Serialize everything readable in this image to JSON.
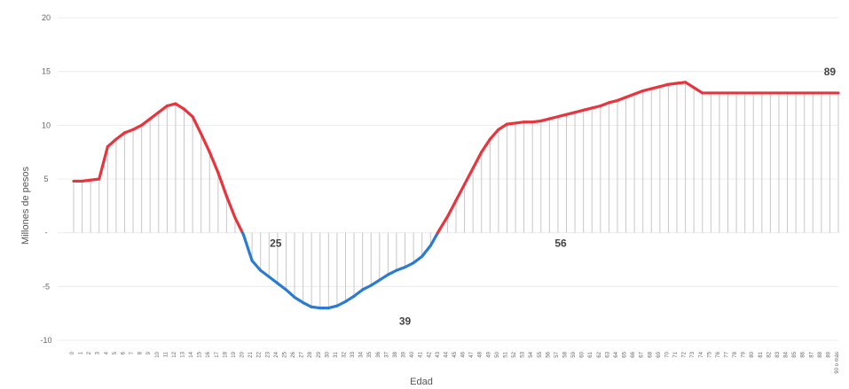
{
  "chart_data": {
    "type": "line",
    "xlabel": "Edad",
    "ylabel": "Millones de pesos",
    "ylim": [
      -10,
      20
    ],
    "yticks": [
      {
        "value": 20,
        "label": "20"
      },
      {
        "value": 15,
        "label": "15"
      },
      {
        "value": 10,
        "label": "10"
      },
      {
        "value": 5,
        "label": "5"
      },
      {
        "value": 0,
        "label": "-"
      },
      {
        "value": -5,
        "label": "-5"
      },
      {
        "value": -10,
        "label": "-10"
      }
    ],
    "x_min": 0,
    "x_max": 90,
    "last_x_label": "90 o más",
    "grid": true,
    "legend": "none",
    "colors": {
      "positive": "#e8343c",
      "negative": "#2a7bd1",
      "drop": "#c8c8c8",
      "grid": "#ececec"
    },
    "series": [
      {
        "x": [
          0,
          1,
          2,
          3,
          4,
          5,
          6,
          7,
          8,
          9,
          10,
          11,
          12,
          13,
          14,
          15,
          16,
          17,
          18,
          19,
          20,
          21,
          22,
          23,
          24,
          25,
          26,
          27,
          28,
          29,
          30,
          31,
          32,
          33,
          34,
          35,
          36,
          37,
          38,
          39,
          40,
          41,
          42,
          43,
          44,
          45,
          46,
          47,
          48,
          49,
          50,
          51,
          52,
          53,
          54,
          55,
          56,
          57,
          58,
          59,
          60,
          61,
          62,
          63,
          64,
          65,
          66,
          67,
          68,
          69,
          70,
          71,
          72,
          73,
          74,
          75,
          76,
          77,
          78,
          79,
          80,
          81,
          82,
          83,
          84,
          85,
          86,
          87,
          88,
          89,
          90
        ],
        "values": [
          4.8,
          4.8,
          4.9,
          5.0,
          8.0,
          8.7,
          9.3,
          9.6,
          10.0,
          10.6,
          11.2,
          11.8,
          12.0,
          11.5,
          10.8,
          9.2,
          7.5,
          5.6,
          3.4,
          1.4,
          -0.2,
          -2.6,
          -3.5,
          -4.1,
          -4.7,
          -5.3,
          -6.0,
          -6.5,
          -6.9,
          -7.0,
          -7.0,
          -6.8,
          -6.4,
          -5.9,
          -5.3,
          -4.9,
          -4.4,
          -3.9,
          -3.5,
          -3.2,
          -2.8,
          -2.2,
          -1.2,
          0.2,
          1.5,
          3.0,
          4.5,
          6.0,
          7.5,
          8.7,
          9.6,
          10.1,
          10.2,
          10.3,
          10.3,
          10.4,
          10.6,
          10.8,
          11.0,
          11.2,
          11.4,
          11.6,
          11.8,
          12.1,
          12.3,
          12.6,
          12.9,
          13.2,
          13.4,
          13.6,
          13.8,
          13.9,
          14.0,
          13.5,
          13.0,
          13.0,
          13.0,
          13.0,
          13.0,
          13.0,
          13.0,
          13.0,
          13.0,
          13.0,
          13.0,
          13.0,
          13.0,
          13.0,
          13.0,
          13.0,
          13.0
        ]
      }
    ],
    "annotations": [
      {
        "x": 25,
        "y": 0,
        "text": "25"
      },
      {
        "x": 39,
        "y": -7,
        "text": "39"
      },
      {
        "x": 56,
        "y": 0,
        "text": "56"
      },
      {
        "x": 89,
        "y": 14,
        "text": "89"
      }
    ]
  }
}
